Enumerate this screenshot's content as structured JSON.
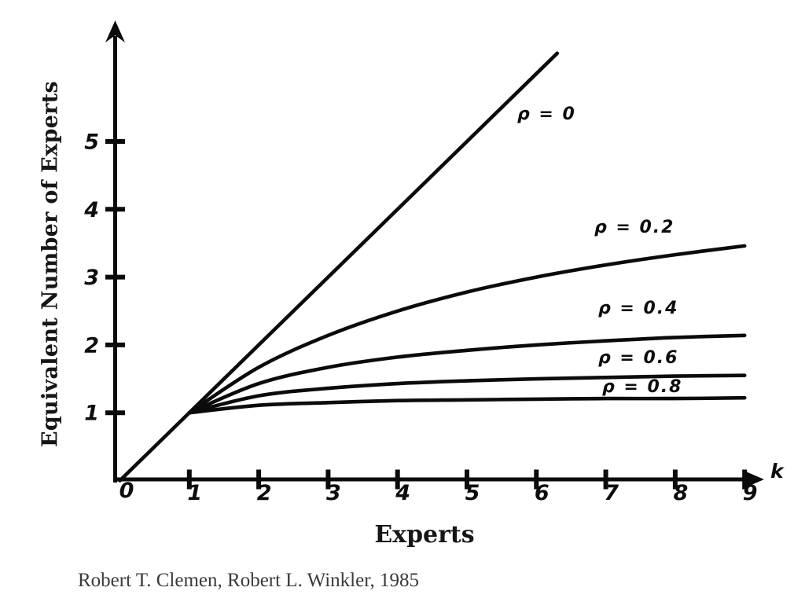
{
  "figure": {
    "y_axis_title": "Equivalent Number of Experts",
    "x_axis_title": "Experts",
    "citation": "Robert T. Clemen, Robert L. Winkler, 1985"
  },
  "chart_data": {
    "type": "line",
    "title": "",
    "xlabel": "Experts",
    "ylabel": "Equivalent Number of Experts",
    "x_axis_symbol": "k",
    "origin_label": "0",
    "x_tick_values": [
      1,
      2,
      3,
      4,
      5,
      6,
      7,
      8,
      9
    ],
    "y_tick_values": [
      1,
      2,
      3,
      4,
      5
    ],
    "xlim": [
      0,
      9.4
    ],
    "ylim": [
      0,
      6.7
    ],
    "grid": false,
    "legend_position": "inline-labels",
    "line_color": "#0b0b0b",
    "series": [
      {
        "name": "rho = 0",
        "label": "ρ = 0",
        "rho": 0,
        "x": [
          0,
          6.3
        ],
        "values": [
          0,
          6.3
        ]
      },
      {
        "name": "rho = 0.2",
        "label": "ρ = 0.2",
        "rho": 0.2,
        "x": [
          1,
          2,
          3,
          4,
          5,
          6,
          7,
          8,
          9
        ],
        "values": [
          1,
          1.67,
          2.14,
          2.5,
          2.78,
          3.0,
          3.18,
          3.33,
          3.46
        ]
      },
      {
        "name": "rho = 0.4",
        "label": "ρ = 0.4",
        "rho": 0.4,
        "x": [
          1,
          2,
          3,
          4,
          5,
          6,
          7,
          8,
          9
        ],
        "values": [
          1,
          1.43,
          1.67,
          1.82,
          1.92,
          2.0,
          2.06,
          2.11,
          2.14
        ]
      },
      {
        "name": "rho = 0.6",
        "label": "ρ = 0.6",
        "rho": 0.6,
        "x": [
          1,
          2,
          3,
          4,
          5,
          6,
          7,
          8,
          9
        ],
        "values": [
          1,
          1.25,
          1.36,
          1.43,
          1.47,
          1.5,
          1.52,
          1.54,
          1.55
        ]
      },
      {
        "name": "rho = 0.8",
        "label": "ρ = 0.8",
        "rho": 0.8,
        "x": [
          1,
          2,
          3,
          4,
          5,
          6,
          7,
          8,
          9
        ],
        "values": [
          1,
          1.11,
          1.15,
          1.18,
          1.19,
          1.2,
          1.21,
          1.21,
          1.22
        ]
      }
    ]
  }
}
